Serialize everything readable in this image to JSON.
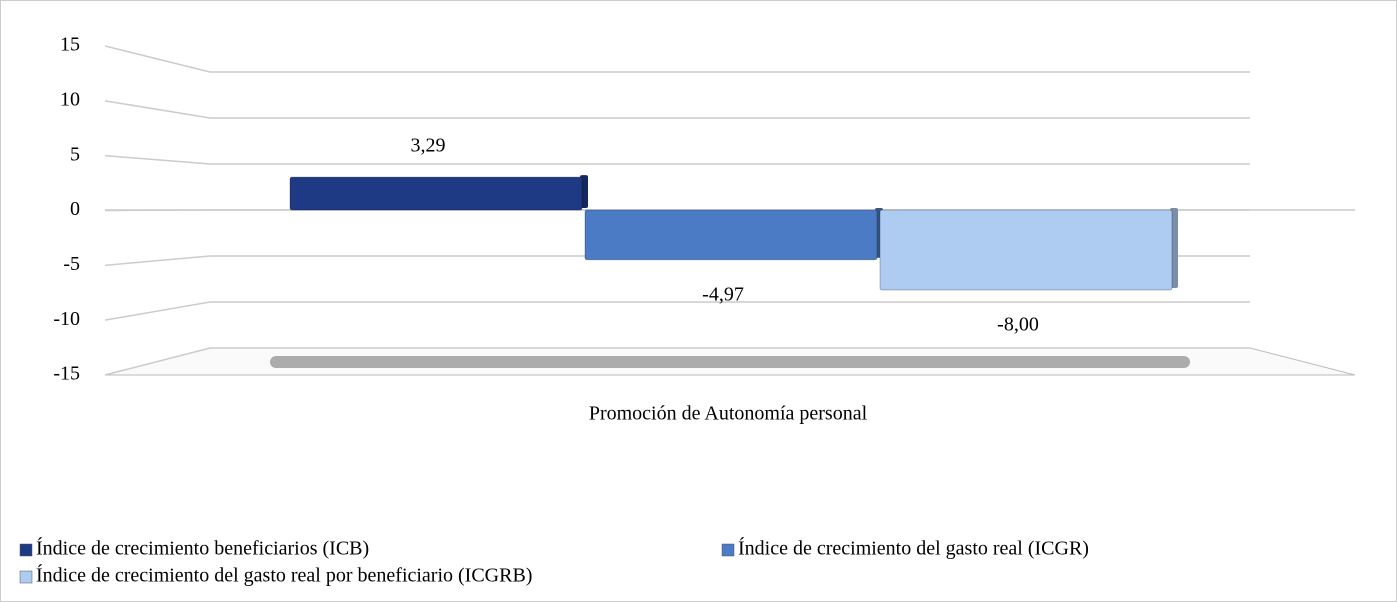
{
  "chart_data": {
    "type": "bar3d",
    "categories": [
      "Promoción de Autonomía personal"
    ],
    "series": [
      {
        "name": "Índice de crecimiento beneficiarios (ICB)",
        "color": "#1f3a85",
        "values": [
          3.29
        ],
        "value_labels": [
          "3,29"
        ]
      },
      {
        "name": "Índice de crecimiento del gasto real (ICGR)",
        "color": "#4a7bc4",
        "values": [
          -4.97
        ],
        "value_labels": [
          "-4,97"
        ]
      },
      {
        "name": "Índice de crecimiento del gasto real por beneficiario (ICGRB)",
        "color": "#aecbf1",
        "values": [
          -8.0
        ],
        "value_labels": [
          "-8,00"
        ]
      }
    ],
    "ylim": [
      -15,
      15
    ],
    "yticks": [
      -15,
      -10,
      -5,
      0,
      5,
      10,
      15
    ],
    "grid": true,
    "legend": "bottom"
  }
}
